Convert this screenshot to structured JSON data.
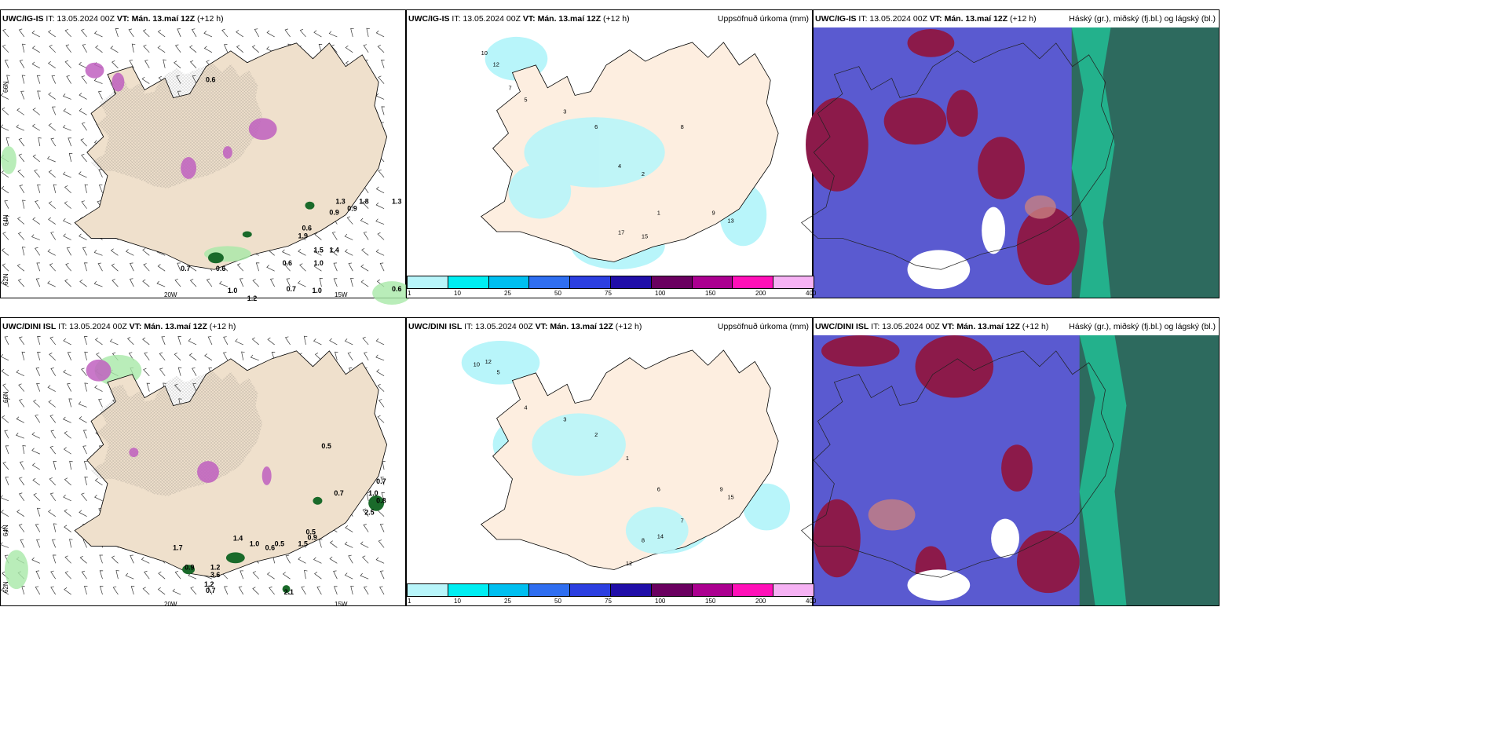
{
  "panels_top": {
    "p1": {
      "model": "UWC/IG-IS",
      "it": "IT: 13.05.2024 00Z",
      "vt_label": "VT: Mán. 13.maí 12Z",
      "lead": "(+12 h)",
      "right": ""
    },
    "p2": {
      "model": "UWC/IG-IS",
      "it": "IT: 13.05.2024 00Z",
      "vt_label": "VT: Mán. 13.maí 12Z",
      "lead": "(+12 h)",
      "right": "Uppsöfnuð úrkoma (mm)"
    },
    "p3": {
      "model": "UWC/IG-IS",
      "it": "IT: 13.05.2024 00Z",
      "vt_label": "VT: Mán. 13.maí 12Z",
      "lead": "(+12 h)",
      "right": "Háský (gr.), miðský (fj.bl.) og lágský (bl.)"
    }
  },
  "panels_bottom": {
    "p1": {
      "model": "UWC/DINI ISL",
      "it": "IT: 13.05.2024 00Z",
      "vt_label": "VT: Mán. 13.maí 12Z",
      "lead": "(+12 h)",
      "right": ""
    },
    "p2": {
      "model": "UWC/DINI ISL",
      "it": "IT: 13.05.2024 00Z",
      "vt_label": "VT: Mán. 13.maí 12Z",
      "lead": "(+12 h)",
      "right": "Uppsöfnuð úrkoma (mm)"
    },
    "p3": {
      "model": "UWC/DINI ISL",
      "it": "IT: 13.05.2024 00Z",
      "vt_label": "VT: Mán. 13.maí 12Z",
      "lead": "(+12 h)",
      "right": "Háský (gr.), miðský (fj.bl.) og lágský (bl.)"
    }
  },
  "axes": {
    "lat_66": "66N",
    "lat_64": "64N",
    "lat_62": "62N",
    "lon_20": "20W",
    "lon_15": "15W"
  },
  "colorbar": {
    "ticks": [
      "1",
      "10",
      "25",
      "50",
      "75",
      "100",
      "150",
      "200",
      "400"
    ],
    "colors": [
      "#b8f5fa",
      "#00eef2",
      "#00bff0",
      "#2f6ef0",
      "#2c3fe0",
      "#200ea8",
      "#6a0060",
      "#ab0090",
      "#ff10b8",
      "#f6b2f4"
    ]
  },
  "top_precip_labels": [
    "0.6",
    "0.9",
    "0.9",
    "1.3",
    "1.8",
    "1.3",
    "0.6",
    "1.9",
    "1.5",
    "1.4",
    "0.6",
    "1.0",
    "0.7",
    "0.6",
    "1.0",
    "0.7",
    "1.0",
    "1.2",
    "0.6"
  ],
  "bottom_precip_labels": [
    "0.5",
    "0.7",
    "1.0",
    "0.8",
    "2.5",
    "0.7",
    "1.7",
    "0.9",
    "1.2",
    "3.6",
    "0.5",
    "1.2",
    "0.7",
    "1.4",
    "1.0",
    "0.6",
    "0.5",
    "0.9",
    "1.5",
    "2.1"
  ],
  "top_accum_labels": [
    "10",
    "12",
    "7",
    "5",
    "3",
    "6",
    "4",
    "2",
    "1",
    "8",
    "17",
    "15",
    "9",
    "13"
  ],
  "bottom_accum_labels": [
    "10",
    "12",
    "5",
    "4",
    "3",
    "2",
    "1",
    "6",
    "7",
    "8",
    "14",
    "9",
    "12",
    "15"
  ]
}
